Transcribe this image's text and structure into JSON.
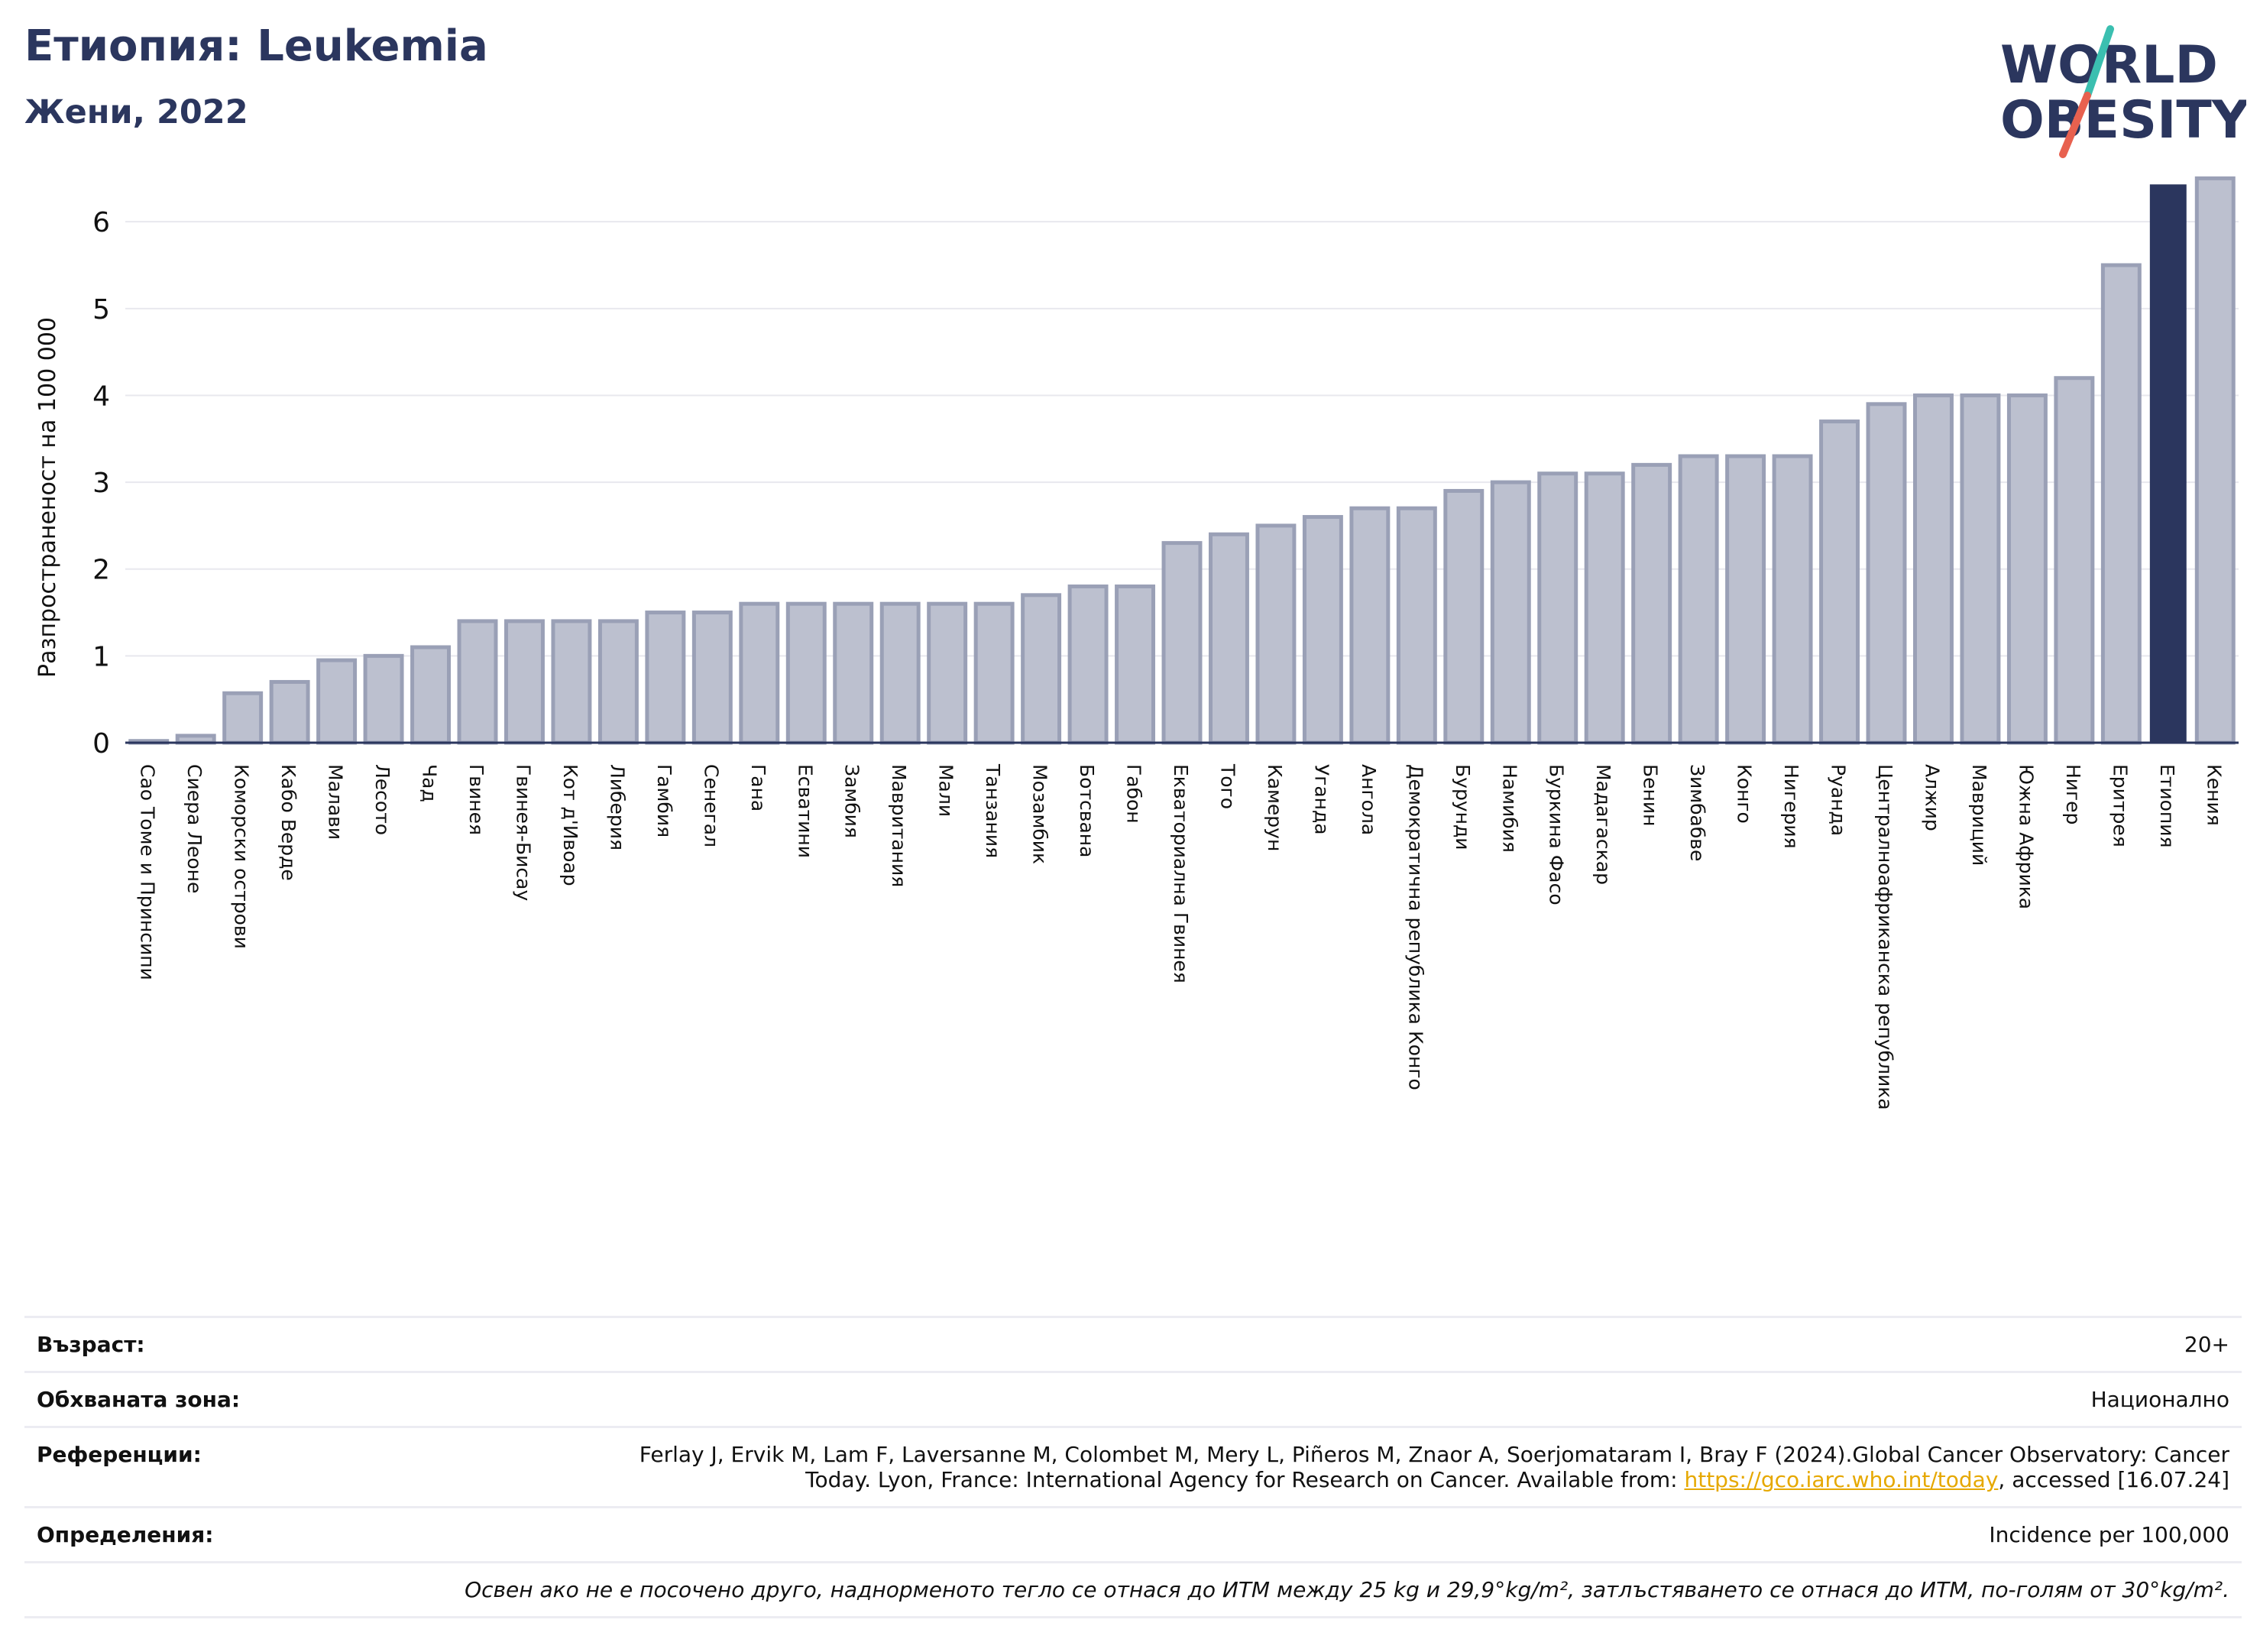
{
  "header": {
    "title": "Етиопия: Leukemia",
    "subtitle": "Жени, 2022"
  },
  "logo": {
    "line1": "WORLD",
    "line2": "OBESITY",
    "colors": {
      "text": "#2b365e",
      "slash_top": "#3bbfb0",
      "slash_bottom": "#e8614f"
    }
  },
  "chart_data": {
    "type": "bar",
    "ylabel": "Разпространеност  на 100 000",
    "xlabel": "",
    "ylim": [
      0,
      6.6
    ],
    "yticks": [
      0,
      1,
      2,
      3,
      4,
      5,
      6
    ],
    "grid": true,
    "highlight": "Етиопия",
    "colors": {
      "bar": "#bcc0cf",
      "bar_edge": "#9aa0b6",
      "highlight": "#2b365e"
    },
    "categories": [
      "Сао Томе и Принсипи",
      "Сиера Леоне",
      "Коморски острови",
      "Кабо Верде",
      "Малави",
      "Лесото",
      "Чад",
      "Гвинея",
      "Гвинея-Бисау",
      "Кот д'Ивоар",
      "Либерия",
      "Гамбия",
      "Сенегал",
      "Гана",
      "Есватини",
      "Замбия",
      "Мавритания",
      "Мали",
      "Танзания",
      "Мозамбик",
      "Ботсвана",
      "Габон",
      "Екваториална Гвинея",
      "Того",
      "Камерун",
      "Уганда",
      "Ангола",
      "Демократична република Конго",
      "Бурунди",
      "Намибия",
      "Буркина Фасо",
      "Мадагаскар",
      "Бенин",
      "Зимбабве",
      "Конго",
      "Нигерия",
      "Руанда",
      "Централноафриканска република",
      "Алжир",
      "Мавриций",
      "Южна Африка",
      "Нигер",
      "Еритрея",
      "Етиопия",
      "Кения"
    ],
    "values": [
      0.02,
      0.08,
      0.57,
      0.7,
      0.95,
      1.0,
      1.1,
      1.4,
      1.4,
      1.4,
      1.4,
      1.5,
      1.5,
      1.6,
      1.6,
      1.6,
      1.6,
      1.6,
      1.6,
      1.7,
      1.8,
      1.8,
      2.3,
      2.4,
      2.5,
      2.6,
      2.7,
      2.7,
      2.9,
      3.0,
      3.1,
      3.1,
      3.2,
      3.3,
      3.3,
      3.3,
      3.7,
      3.9,
      4.0,
      4.0,
      4.0,
      4.2,
      5.5,
      6.43,
      6.5
    ]
  },
  "info": {
    "age_label": "Възраст:",
    "age_value": "20+",
    "area_label": "Обхваната зона:",
    "area_value": "Национално",
    "refs_label": "Референции:",
    "refs_text": "Ferlay J, Ervik M, Lam F, Laversanne M, Colombet M, Mery L, Piñeros M, Znaor A, Soerjomataram I, Bray F (2024).Global Cancer Observatory: Cancer Today. Lyon, France: International Agency for Research on Cancer. Available from: ",
    "refs_link": "https://gco.iarc.who.int/today",
    "refs_suffix": ", accessed [16.07.24]",
    "defs_label": "Определения:",
    "defs_value": "Incidence per 100,000",
    "note": "Освен ако не е посочено друго, наднорменото тегло се отнася до ИТМ между 25 kg и 29,9°kg/m², затлъстяването се отнася до ИТМ, по-голям от 30°kg/m²."
  }
}
